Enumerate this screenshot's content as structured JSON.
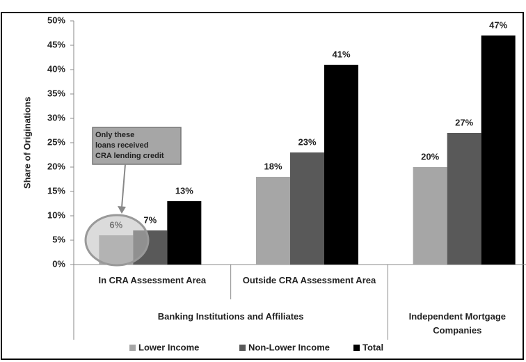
{
  "chart_data": {
    "type": "bar",
    "y_label": "Share of Originations",
    "categories": [
      "In CRA Assessment Area",
      "Outside CRA Assessment Area",
      null
    ],
    "category_groups": [
      {
        "name": "Banking Institutions and Affiliates",
        "count": 2
      },
      {
        "name": "Independent Mortgage Companies",
        "count": 1
      }
    ],
    "series": [
      {
        "name": "Lower Income",
        "color": "#a6a6a6",
        "values": [
          6,
          18,
          20
        ],
        "value_labels": [
          "6%",
          "18%",
          "20%"
        ]
      },
      {
        "name": "Non-Lower Income",
        "color": "#595959",
        "values": [
          7,
          23,
          27
        ],
        "value_labels": [
          "7%",
          "23%",
          "27%"
        ]
      },
      {
        "name": "Total",
        "color": "#000000",
        "values": [
          13,
          41,
          47
        ],
        "value_labels": [
          "13%",
          "41%",
          "47%"
        ]
      }
    ],
    "ylim": [
      0,
      50
    ],
    "yticks": [
      {
        "value": 0,
        "label": "0%"
      },
      {
        "value": 5,
        "label": "5%"
      },
      {
        "value": 10,
        "label": "10%"
      },
      {
        "value": 15,
        "label": "15%"
      },
      {
        "value": 20,
        "label": "20%"
      },
      {
        "value": 25,
        "label": "25%"
      },
      {
        "value": 30,
        "label": "30%"
      },
      {
        "value": 35,
        "label": "35%"
      },
      {
        "value": 40,
        "label": "40%"
      },
      {
        "value": 45,
        "label": "45%"
      },
      {
        "value": 50,
        "label": "50%"
      }
    ],
    "grid": false,
    "legend": "bottom",
    "annotation": {
      "lines": [
        "Only these",
        "loans received",
        "CRA lending credit"
      ]
    }
  }
}
